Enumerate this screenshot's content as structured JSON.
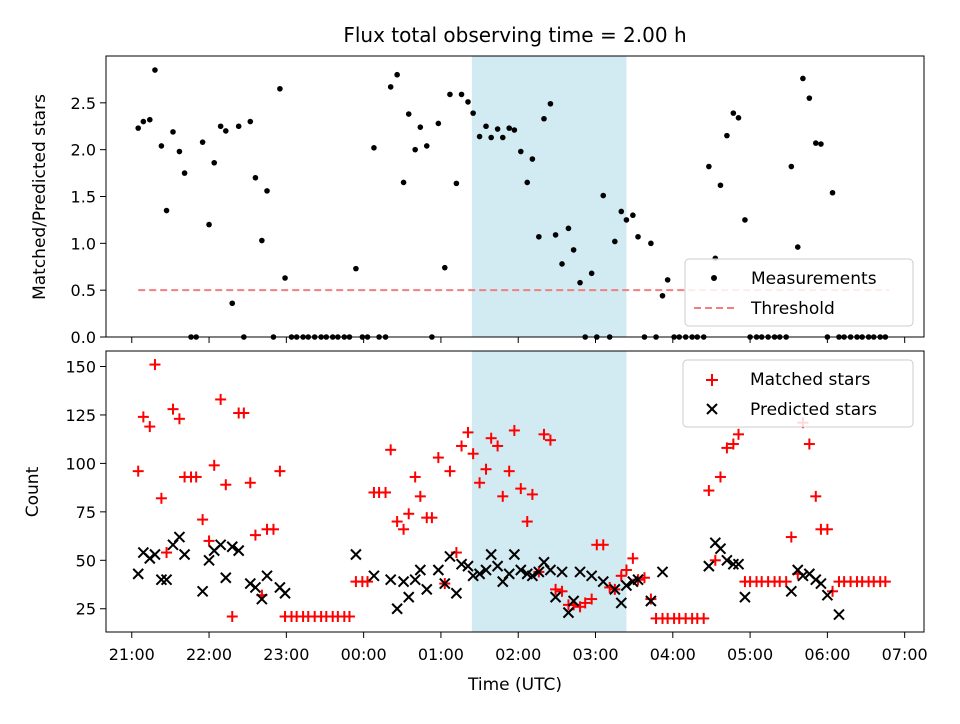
{
  "chart_data": [
    {
      "type": "scatter",
      "title": "Flux total observing time = 2.00 h",
      "xlabel": "",
      "ylabel": "Matched/Predicted stars",
      "xlim": [
        "20:40",
        "07:15"
      ],
      "ylim": [
        0,
        3.0
      ],
      "yticks": [
        "0.0",
        "0.5",
        "1.0",
        "1.5",
        "2.0",
        "2.5"
      ],
      "shaded_region": [
        "01:24",
        "03:24"
      ],
      "grid": false,
      "legend_position": "bottom-right",
      "threshold": {
        "name": "Threshold",
        "value": 0.5,
        "x_range": [
          "21:05",
          "06:48"
        ],
        "color": "#f08080"
      },
      "series": [
        {
          "name": "Measurements",
          "color": "#000000",
          "x": [
            "21:05",
            "21:09",
            "21:14",
            "21:18",
            "21:23",
            "21:27",
            "21:32",
            "21:37",
            "21:41",
            "21:46",
            "21:50",
            "21:55",
            "22:00",
            "22:04",
            "22:09",
            "22:13",
            "22:18",
            "22:23",
            "22:27",
            "22:32",
            "22:36",
            "22:41",
            "22:45",
            "22:50",
            "22:55",
            "22:59",
            "23:04",
            "23:08",
            "23:13",
            "23:17",
            "23:22",
            "23:27",
            "23:31",
            "23:36",
            "23:40",
            "23:45",
            "23:49",
            "23:54",
            "23:59",
            "00:03",
            "00:08",
            "00:12",
            "00:17",
            "00:21",
            "00:26",
            "00:31",
            "00:35",
            "00:40",
            "00:44",
            "00:49",
            "00:53",
            "00:58",
            "01:03",
            "01:07",
            "01:12",
            "01:16",
            "01:21",
            "01:25",
            "01:30",
            "01:35",
            "01:39",
            "01:44",
            "01:48",
            "01:53",
            "01:57",
            "02:02",
            "02:07",
            "02:11",
            "02:16",
            "02:20",
            "02:25",
            "02:29",
            "02:34",
            "02:39",
            "02:43",
            "02:48",
            "02:52",
            "02:57",
            "03:01",
            "03:06",
            "03:11",
            "03:15",
            "03:20",
            "03:24",
            "03:29",
            "03:33",
            "03:38",
            "03:43",
            "03:47",
            "03:52",
            "03:56",
            "04:01",
            "04:05",
            "04:10",
            "04:15",
            "04:19",
            "04:24",
            "04:28",
            "04:33",
            "04:37",
            "04:42",
            "04:47",
            "04:51",
            "04:56",
            "05:00",
            "05:05",
            "05:09",
            "05:14",
            "05:19",
            "05:23",
            "05:28",
            "05:32",
            "05:37",
            "05:41",
            "05:46",
            "05:51",
            "05:55",
            "06:00",
            "06:04",
            "06:09",
            "06:13",
            "06:18",
            "06:23",
            "06:27",
            "06:32",
            "06:36",
            "06:41",
            "06:45"
          ],
          "y": [
            2.23,
            2.3,
            2.32,
            2.85,
            2.04,
            1.35,
            2.19,
            1.98,
            1.75,
            0.0,
            0.0,
            2.08,
            1.2,
            1.86,
            2.25,
            2.2,
            0.36,
            2.25,
            0.0,
            2.3,
            1.7,
            1.03,
            1.56,
            0.0,
            2.65,
            0.63,
            0.0,
            0.0,
            0.0,
            0.0,
            0.0,
            0.0,
            0.0,
            0.0,
            0.0,
            0.0,
            0.0,
            0.73,
            0.0,
            0.0,
            2.02,
            0.0,
            0.0,
            2.67,
            2.8,
            1.65,
            2.38,
            2.0,
            2.24,
            2.04,
            0.0,
            2.28,
            0.74,
            2.59,
            1.64,
            2.59,
            2.51,
            2.39,
            2.14,
            2.25,
            2.13,
            2.22,
            2.13,
            2.23,
            2.21,
            1.98,
            1.65,
            1.9,
            1.07,
            2.33,
            2.49,
            1.09,
            0.78,
            1.16,
            0.93,
            0.58,
            0.0,
            0.68,
            0.0,
            1.51,
            0.0,
            1.02,
            1.34,
            1.25,
            1.3,
            1.07,
            0.0,
            1.0,
            0.0,
            0.44,
            0.61,
            0.0,
            0.0,
            0.0,
            0.0,
            0.0,
            0.0,
            1.82,
            0.84,
            1.62,
            2.15,
            2.39,
            2.34,
            1.25,
            0.0,
            0.0,
            0.0,
            0.0,
            0.0,
            0.0,
            0.0,
            1.82,
            0.96,
            2.76,
            2.55,
            2.07,
            2.06,
            0.0,
            1.54,
            0.0,
            0.0,
            0.0,
            0.0,
            0.0,
            0.0,
            0.0,
            0.0,
            0.0
          ]
        }
      ]
    },
    {
      "type": "scatter",
      "title": "",
      "xlabel": "Time (UTC)",
      "ylabel": "Count",
      "xlim": [
        "20:40",
        "07:15"
      ],
      "ylim": [
        13,
        158
      ],
      "xticks": [
        "21:00",
        "22:00",
        "23:00",
        "00:00",
        "01:00",
        "02:00",
        "03:00",
        "04:00",
        "05:00",
        "06:00",
        "07:00"
      ],
      "yticks": [
        "25",
        "50",
        "75",
        "100",
        "125",
        "150"
      ],
      "shaded_region": [
        "01:24",
        "03:24"
      ],
      "grid": false,
      "legend_position": "top-right",
      "series": [
        {
          "name": "Matched stars",
          "marker": "plus",
          "color": "#ff0000",
          "x": [
            "21:05",
            "21:09",
            "21:14",
            "21:18",
            "21:23",
            "21:27",
            "21:32",
            "21:37",
            "21:41",
            "21:46",
            "21:50",
            "21:55",
            "22:00",
            "22:04",
            "22:09",
            "22:13",
            "22:18",
            "22:23",
            "22:27",
            "22:32",
            "22:36",
            "22:41",
            "22:45",
            "22:50",
            "22:55",
            "22:59",
            "23:04",
            "23:08",
            "23:13",
            "23:17",
            "23:22",
            "23:27",
            "23:31",
            "23:36",
            "23:40",
            "23:45",
            "23:49",
            "23:54",
            "23:59",
            "00:03",
            "00:08",
            "00:12",
            "00:17",
            "00:21",
            "00:26",
            "00:31",
            "00:35",
            "00:40",
            "00:44",
            "00:49",
            "00:53",
            "00:58",
            "01:03",
            "01:07",
            "01:12",
            "01:16",
            "01:21",
            "01:25",
            "01:30",
            "01:35",
            "01:39",
            "01:44",
            "01:48",
            "01:53",
            "01:57",
            "02:02",
            "02:07",
            "02:11",
            "02:16",
            "02:20",
            "02:25",
            "02:29",
            "02:34",
            "02:39",
            "02:43",
            "02:48",
            "02:52",
            "02:57",
            "03:01",
            "03:06",
            "03:11",
            "03:15",
            "03:20",
            "03:24",
            "03:29",
            "03:33",
            "03:38",
            "03:43",
            "03:47",
            "03:52",
            "03:56",
            "04:01",
            "04:05",
            "04:10",
            "04:15",
            "04:19",
            "04:24",
            "04:28",
            "04:33",
            "04:37",
            "04:42",
            "04:47",
            "04:51",
            "04:56",
            "05:00",
            "05:05",
            "05:09",
            "05:14",
            "05:19",
            "05:23",
            "05:28",
            "05:32",
            "05:37",
            "05:41",
            "05:46",
            "05:51",
            "05:55",
            "06:00",
            "06:04",
            "06:09",
            "06:13",
            "06:18",
            "06:23",
            "06:27",
            "06:32",
            "06:36",
            "06:41",
            "06:45"
          ],
          "y": [
            96,
            124,
            119,
            151,
            82,
            54,
            128,
            123,
            93,
            93,
            93,
            71,
            60,
            99,
            133,
            89,
            21,
            126,
            126,
            90,
            63,
            32,
            66,
            66,
            96,
            21,
            21,
            21,
            21,
            21,
            21,
            21,
            21,
            21,
            21,
            21,
            21,
            39,
            39,
            39,
            85,
            85,
            85,
            107,
            70,
            66,
            74,
            93,
            83,
            72,
            72,
            103,
            38,
            96,
            54,
            109,
            116,
            105,
            90,
            97,
            113,
            109,
            83,
            96,
            117,
            87,
            70,
            84,
            44,
            115,
            112,
            35,
            34,
            27,
            27,
            26,
            28,
            30,
            58,
            58,
            36,
            35,
            42,
            45,
            51,
            40,
            41,
            30,
            20,
            20,
            20,
            20,
            20,
            20,
            20,
            20,
            20,
            86,
            50,
            93,
            108,
            110,
            115,
            39,
            39,
            39,
            39,
            39,
            39,
            39,
            39,
            62,
            43,
            121,
            110,
            83,
            66,
            66,
            34,
            39,
            39,
            39,
            39,
            39,
            39,
            39,
            39,
            39
          ]
        },
        {
          "name": "Predicted stars",
          "marker": "x",
          "color": "#000000",
          "x": [
            "21:05",
            "21:09",
            "21:14",
            "21:18",
            "21:23",
            "21:27",
            "21:32",
            "21:37",
            "21:41",
            "21:46",
            "21:50",
            "21:55",
            "22:00",
            "22:04",
            "22:09",
            "22:13",
            "22:18",
            "22:23",
            "22:27",
            "22:32",
            "22:36",
            "22:41",
            "22:45",
            "22:50",
            "22:55",
            "22:59",
            "23:04",
            "23:08",
            "23:13",
            "23:17",
            "23:22",
            "23:27",
            "23:31",
            "23:36",
            "23:40",
            "23:45",
            "23:49",
            "23:54",
            "23:59",
            "00:03",
            "00:08",
            "00:12",
            "00:17",
            "00:21",
            "00:26",
            "00:31",
            "00:35",
            "00:40",
            "00:44",
            "00:49",
            "00:53",
            "00:58",
            "01:03",
            "01:07",
            "01:12",
            "01:16",
            "01:21",
            "01:25",
            "01:30",
            "01:35",
            "01:39",
            "01:44",
            "01:48",
            "01:53",
            "01:57",
            "02:02",
            "02:07",
            "02:11",
            "02:16",
            "02:20",
            "02:25",
            "02:29",
            "02:34",
            "02:39",
            "02:43",
            "02:48",
            "02:52",
            "02:57",
            "03:01",
            "03:06",
            "03:11",
            "03:15",
            "03:20",
            "03:24",
            "03:29",
            "03:33",
            "03:38",
            "03:43",
            "03:47",
            "03:52",
            "03:56",
            "04:01",
            "04:05",
            "04:10",
            "04:15",
            "04:19",
            "04:24",
            "04:28",
            "04:33",
            "04:37",
            "04:42",
            "04:47",
            "04:51",
            "04:56",
            "05:00",
            "05:05",
            "05:09",
            "05:14",
            "05:19",
            "05:23",
            "05:28",
            "05:32",
            "05:37",
            "05:41",
            "05:46",
            "05:51",
            "05:55",
            "06:00",
            "06:04",
            "06:09",
            "06:13",
            "06:18",
            "06:23",
            "06:27",
            "06:32",
            "06:36",
            "06:41",
            "06:45"
          ],
          "y": [
            43,
            54,
            51,
            53,
            40,
            40,
            58,
            62,
            53,
            null,
            null,
            34,
            50,
            55,
            58,
            41,
            57,
            55,
            null,
            38,
            36,
            30,
            42,
            null,
            36,
            33,
            null,
            null,
            null,
            null,
            null,
            null,
            null,
            null,
            null,
            null,
            null,
            53,
            null,
            null,
            42,
            null,
            null,
            40,
            25,
            39,
            31,
            40,
            45,
            35,
            null,
            45,
            38,
            52,
            33,
            48,
            47,
            42,
            43,
            45,
            53,
            47,
            39,
            43,
            53,
            45,
            43,
            42,
            44,
            49,
            45,
            31,
            44,
            23,
            29,
            44,
            null,
            42,
            null,
            39,
            null,
            35,
            28,
            37,
            39,
            40,
            null,
            29,
            null,
            44,
            null,
            null,
            null,
            null,
            null,
            null,
            null,
            47,
            59,
            56,
            50,
            48,
            48,
            31,
            null,
            null,
            null,
            null,
            null,
            null,
            null,
            34,
            45,
            42,
            43,
            40,
            38,
            32,
            null,
            22,
            null,
            null,
            null,
            null,
            null,
            null,
            null,
            null
          ]
        }
      ]
    }
  ]
}
